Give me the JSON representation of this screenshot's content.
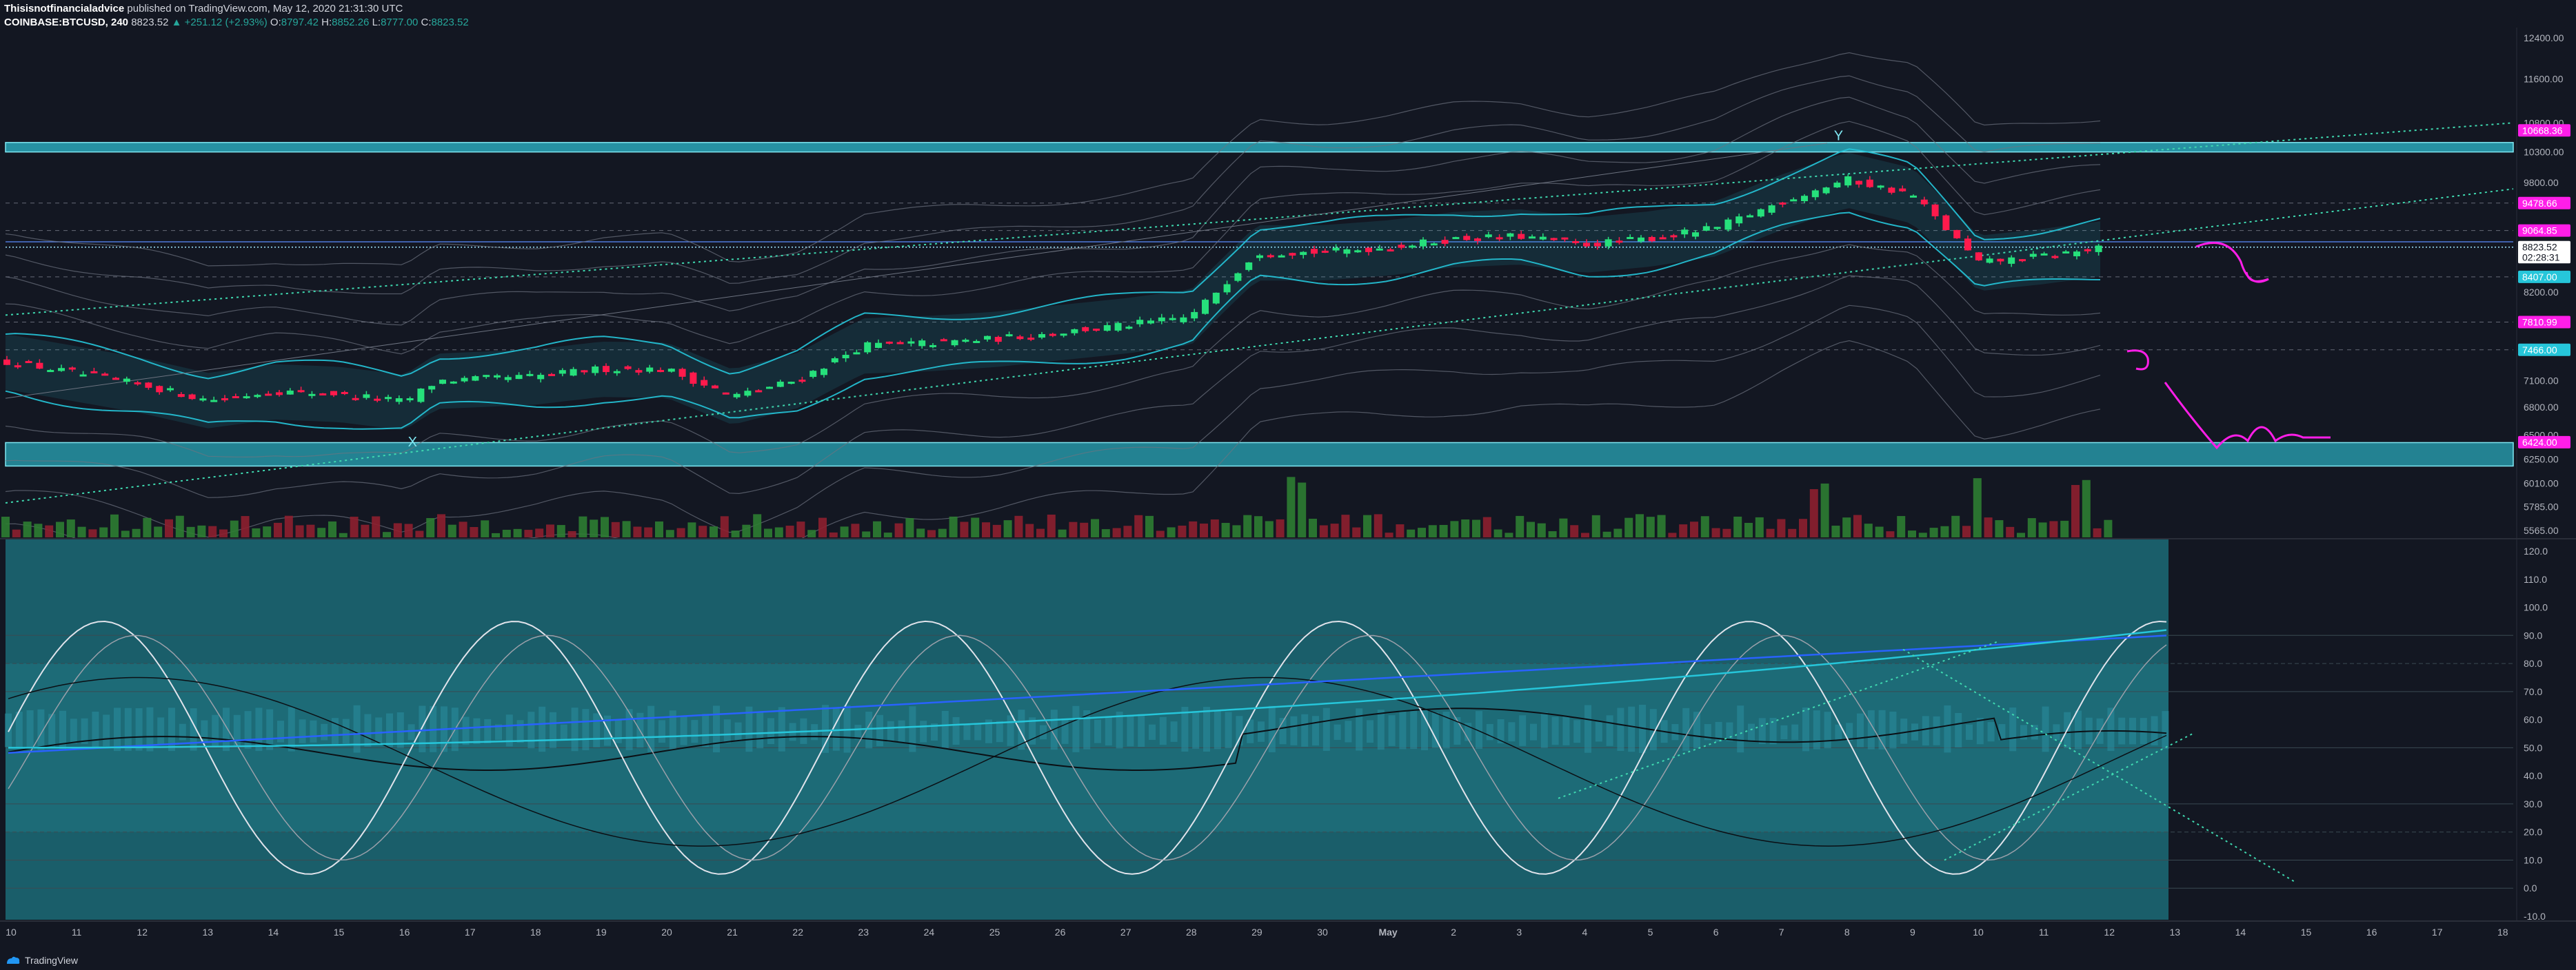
{
  "header": {
    "author": "Thisisnotfinancialadvice",
    "published": "published on TradingView.com, May 12, 2020 21:31:30 UTC",
    "symbol": "COINBASE:BTCUSD, 240",
    "last": "8823.52",
    "change": "+251.12 (+2.93%)",
    "o_label": "O:",
    "o": "8797.42",
    "h_label": "H:",
    "h": "8852.26",
    "l_label": "L:",
    "l": "8777.00",
    "c_label": "C:",
    "c": "8823.52"
  },
  "footer": {
    "brand": "TradingView"
  },
  "colors": {
    "background": "#131722",
    "up": "#26e07b",
    "down": "#ff1a4c",
    "channel": "#26c6da",
    "pink": "#ff1ee8",
    "zone": "#2aa7b8",
    "osc_bg": "#1a5e6a"
  },
  "chart_data": {
    "type": "line",
    "price_axis_labels": [
      "12400.00",
      "11600.00",
      "10800.00",
      "10300.00",
      "9800.00",
      "8200.00",
      "7100.00",
      "6800.00",
      "6500.00",
      "6250.00",
      "6010.00",
      "5785.00",
      "5565.00"
    ],
    "price_tags": [
      {
        "text": "10668.36",
        "color": "#ff1ee8",
        "price": 10668
      },
      {
        "text": "9478.66",
        "color": "#ff1ee8",
        "price": 9478
      },
      {
        "text": "9064.85",
        "color": "#ff1ee8",
        "price": 9064
      },
      {
        "text": "8823.52",
        "color": "#ffffff",
        "price": 8823
      },
      {
        "text": "02:28:31",
        "color": "#ffffff",
        "price": 8680
      },
      {
        "text": "8407.00",
        "color": "#26c6da",
        "price": 8407
      },
      {
        "text": "7810.99",
        "color": "#ff1ee8",
        "price": 7811
      },
      {
        "text": "7466.00",
        "color": "#26c6da",
        "price": 7466
      },
      {
        "text": "6424.00",
        "color": "#ff1ee8",
        "price": 6424
      }
    ],
    "osc_axis_labels": [
      "120.0",
      "110.0",
      "100.0",
      "90.0",
      "80.0",
      "70.0",
      "60.0",
      "50.0",
      "40.0",
      "30.0",
      "20.0",
      "10.0",
      "0.0",
      "-10.0"
    ],
    "x_labels": [
      "10",
      "11",
      "12",
      "13",
      "14",
      "15",
      "16",
      "17",
      "18",
      "19",
      "20",
      "21",
      "22",
      "23",
      "24",
      "25",
      "26",
      "27",
      "28",
      "29",
      "30",
      "May",
      "2",
      "3",
      "4",
      "5",
      "6",
      "7",
      "8",
      "9",
      "10",
      "11",
      "12",
      "13",
      "14",
      "15",
      "16",
      "17",
      "18"
    ],
    "annotations": [
      "X",
      "Y"
    ],
    "close_path": [
      {
        "x": "10",
        "y": 7320
      },
      {
        "x": "12",
        "y": 7050
      },
      {
        "x": "13",
        "y": 6880
      },
      {
        "x": "14",
        "y": 6980
      },
      {
        "x": "15",
        "y": 6950
      },
      {
        "x": "16",
        "y": 6860
      },
      {
        "x": "16.5",
        "y": 7100
      },
      {
        "x": "18",
        "y": 7150
      },
      {
        "x": "19",
        "y": 7240
      },
      {
        "x": "20",
        "y": 7230
      },
      {
        "x": "21",
        "y": 6920
      },
      {
        "x": "22",
        "y": 7110
      },
      {
        "x": "23",
        "y": 7520
      },
      {
        "x": "24",
        "y": 7550
      },
      {
        "x": "25",
        "y": 7600
      },
      {
        "x": "27",
        "y": 7770
      },
      {
        "x": "28",
        "y": 7880
      },
      {
        "x": "29",
        "y": 8750
      },
      {
        "x": "30",
        "y": 8750
      },
      {
        "x": "May",
        "y": 8820
      },
      {
        "x": "2",
        "y": 8940
      },
      {
        "x": "3",
        "y": 8980
      },
      {
        "x": "4",
        "y": 8860
      },
      {
        "x": "5",
        "y": 8950
      },
      {
        "x": "6",
        "y": 9100
      },
      {
        "x": "7",
        "y": 9500
      },
      {
        "x": "8",
        "y": 9850
      },
      {
        "x": "9",
        "y": 9600
      },
      {
        "x": "10",
        "y": 8600
      },
      {
        "x": "11",
        "y": 8700
      },
      {
        "x": "12",
        "y": 8823
      }
    ],
    "ylim": [
      5500,
      12500
    ],
    "osc_ylim": [
      -10,
      120
    ]
  }
}
